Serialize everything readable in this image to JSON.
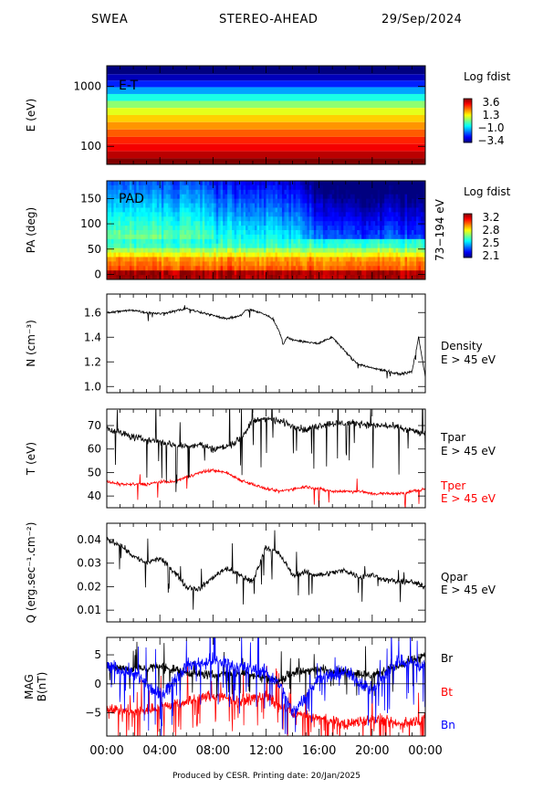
{
  "header": {
    "instrument": "SWEA",
    "spacecraft": "STEREO-AHEAD",
    "date": "29/Sep/2024"
  },
  "footer": "Produced by CESR.   Printing date: 20/Jan/2025",
  "colors": {
    "black": "#000000",
    "red": "#ff0000",
    "blue": "#0000ff"
  },
  "chart_data": [
    {
      "type": "heatmap",
      "panel_label": "E-T",
      "ylabel": "E (eV)",
      "yscale": "log",
      "ylim": [
        50,
        2200
      ],
      "y_ticks": [
        "1000",
        "100"
      ],
      "y_tick_values": [
        1000,
        100
      ],
      "colorbar_title": "Log fdist",
      "colorbar_ticks": [
        "3.6",
        "1.3",
        "−1.0",
        "−3.4"
      ],
      "colorbar_range": [
        -3.4,
        3.6
      ],
      "energy_bands": [
        {
          "energy_eV": 1800,
          "value": -3.4
        },
        {
          "energy_eV": 1400,
          "value": -3.0
        },
        {
          "energy_eV": 1100,
          "value": -2.3
        },
        {
          "energy_eV": 850,
          "value": -1.4
        },
        {
          "energy_eV": 650,
          "value": -0.6
        },
        {
          "energy_eV": 500,
          "value": 0.2
        },
        {
          "energy_eV": 380,
          "value": 0.8
        },
        {
          "energy_eV": 290,
          "value": 1.3
        },
        {
          "energy_eV": 220,
          "value": 1.7
        },
        {
          "energy_eV": 165,
          "value": 2.1
        },
        {
          "energy_eV": 125,
          "value": 2.5
        },
        {
          "energy_eV": 95,
          "value": 2.8
        },
        {
          "energy_eV": 72,
          "value": 3.2
        },
        {
          "energy_eV": 55,
          "value": 3.6
        }
      ]
    },
    {
      "type": "heatmap",
      "panel_label": "PAD",
      "ylabel": "PA (deg)",
      "right_label": "73−194 eV",
      "ylim": [
        -10,
        185
      ],
      "y_ticks": [
        "150",
        "100",
        "50",
        "0"
      ],
      "y_tick_values": [
        150,
        100,
        50,
        0
      ],
      "colorbar_title": "Log fdist",
      "colorbar_ticks": [
        "3.2",
        "2.8",
        "2.5",
        "2.1"
      ],
      "colorbar_range": [
        2.1,
        3.3
      ]
    },
    {
      "type": "line",
      "ylabel": "N (cm⁻³)",
      "ylim": [
        0.95,
        1.75
      ],
      "y_ticks": [
        "1.6",
        "1.4",
        "1.2",
        "1.0"
      ],
      "y_tick_values": [
        1.6,
        1.4,
        1.2,
        1.0
      ],
      "legend": [
        {
          "lines": [
            "Density",
            "E > 45 eV"
          ],
          "color": "#000000"
        }
      ],
      "series": [
        {
          "color": "#000000",
          "x_hours": [
            0,
            1,
            2,
            3,
            4,
            5,
            6,
            6.5,
            7,
            8,
            9,
            10,
            10.5,
            11,
            11.5,
            12,
            12.5,
            13,
            13.3,
            13.6,
            14,
            15,
            16,
            17,
            18,
            18.5,
            19,
            20,
            21,
            22,
            23,
            23.5,
            24
          ],
          "values": [
            1.6,
            1.61,
            1.62,
            1.6,
            1.59,
            1.61,
            1.63,
            1.62,
            1.6,
            1.58,
            1.55,
            1.57,
            1.62,
            1.62,
            1.6,
            1.58,
            1.55,
            1.45,
            1.34,
            1.4,
            1.38,
            1.36,
            1.35,
            1.4,
            1.28,
            1.22,
            1.18,
            1.15,
            1.13,
            1.1,
            1.12,
            1.4,
            1.08
          ]
        }
      ]
    },
    {
      "type": "line",
      "ylabel": "T (eV)",
      "ylim": [
        35,
        77
      ],
      "y_ticks": [
        "70",
        "60",
        "50",
        "40"
      ],
      "y_tick_values": [
        70,
        60,
        50,
        40
      ],
      "legend": [
        {
          "lines": [
            "Tpar",
            "E > 45 eV"
          ],
          "color": "#000000"
        },
        {
          "lines": [
            "Tper",
            "E > 45 eV"
          ],
          "color": "#ff0000"
        }
      ],
      "series": [
        {
          "name": "Tpar",
          "color": "#000000",
          "x_hours": [
            0,
            1,
            2,
            3,
            4,
            5,
            6,
            7,
            8,
            9,
            10,
            10.5,
            11,
            12,
            13,
            14,
            15,
            16,
            17,
            18,
            19,
            20,
            21,
            22,
            23,
            24
          ],
          "values": [
            69,
            67,
            65,
            64,
            63,
            62,
            61,
            62,
            60,
            61,
            64,
            68,
            72,
            73,
            72,
            70,
            68,
            70,
            71,
            71,
            71,
            70,
            70,
            69,
            68,
            66
          ]
        },
        {
          "name": "Tper",
          "color": "#ff0000",
          "x_hours": [
            0,
            1,
            2,
            3,
            4,
            5,
            6,
            7,
            8,
            9,
            10,
            11,
            12,
            13,
            14,
            15,
            16,
            17,
            18,
            19,
            20,
            21,
            22,
            23,
            24
          ],
          "values": [
            46,
            45,
            45,
            45,
            46,
            46,
            48,
            50,
            51,
            50,
            47,
            45,
            43,
            42,
            43,
            44,
            43,
            42,
            42,
            42,
            41,
            41,
            41,
            42,
            43
          ]
        }
      ]
    },
    {
      "type": "line",
      "ylabel": "Q (erg.sec⁻¹.cm⁻²)",
      "ylim": [
        0.005,
        0.047
      ],
      "y_ticks": [
        "0.04",
        "0.03",
        "0.02",
        "0.01"
      ],
      "y_tick_values": [
        0.04,
        0.03,
        0.02,
        0.01
      ],
      "legend": [
        {
          "lines": [
            "Qpar",
            "E > 45 eV"
          ],
          "color": "#000000"
        }
      ],
      "series": [
        {
          "color": "#000000",
          "x_hours": [
            0,
            1,
            2,
            3,
            4,
            5,
            6,
            7,
            8,
            9,
            10,
            11,
            12,
            13,
            14,
            15,
            16,
            17,
            18,
            19,
            20,
            21,
            22,
            23,
            24
          ],
          "values": [
            0.04,
            0.038,
            0.033,
            0.03,
            0.032,
            0.027,
            0.02,
            0.019,
            0.024,
            0.028,
            0.025,
            0.022,
            0.037,
            0.034,
            0.025,
            0.026,
            0.025,
            0.026,
            0.027,
            0.024,
            0.025,
            0.023,
            0.022,
            0.022,
            0.02
          ]
        }
      ]
    },
    {
      "type": "line",
      "ylabel": "MAG B(nT)",
      "ylim": [
        -9,
        8
      ],
      "y_ticks": [
        "5",
        "0",
        "−5"
      ],
      "y_tick_values": [
        5,
        0,
        -5
      ],
      "legend": [
        {
          "lines": [
            "Br"
          ],
          "color": "#000000"
        },
        {
          "lines": [
            "Bt"
          ],
          "color": "#ff0000"
        },
        {
          "lines": [
            "Bn"
          ],
          "color": "#0000ff"
        }
      ],
      "x_tick_labels": [
        "00:00",
        "04:00",
        "08:00",
        "12:00",
        "16:00",
        "20:00",
        "00:00"
      ],
      "x_range_hours": [
        0,
        24
      ],
      "series": [
        {
          "name": "Br",
          "color": "#000000",
          "x_hours": [
            0,
            2,
            4,
            6,
            8,
            10,
            12,
            13,
            14,
            16,
            18,
            20,
            22,
            24
          ],
          "values": [
            3,
            2.5,
            3,
            2,
            1.5,
            2,
            1,
            0.5,
            2,
            2.5,
            2,
            1.5,
            3,
            5
          ]
        },
        {
          "name": "Bt",
          "color": "#ff0000",
          "x_hours": [
            0,
            2,
            4,
            6,
            8,
            10,
            12,
            13,
            14,
            16,
            18,
            20,
            22,
            24
          ],
          "values": [
            -4,
            -5,
            -4,
            -3,
            -2,
            -3,
            -2,
            -4,
            -5,
            -6,
            -7,
            -6,
            -7,
            -6
          ]
        },
        {
          "name": "Bn",
          "color": "#0000ff",
          "x_hours": [
            0,
            2,
            4,
            6,
            8,
            10,
            12,
            13,
            14,
            16,
            18,
            20,
            22,
            24
          ],
          "values": [
            3,
            2,
            -2,
            3,
            4,
            3,
            2,
            0,
            -5,
            1,
            2,
            -1,
            4,
            3
          ]
        }
      ]
    }
  ]
}
